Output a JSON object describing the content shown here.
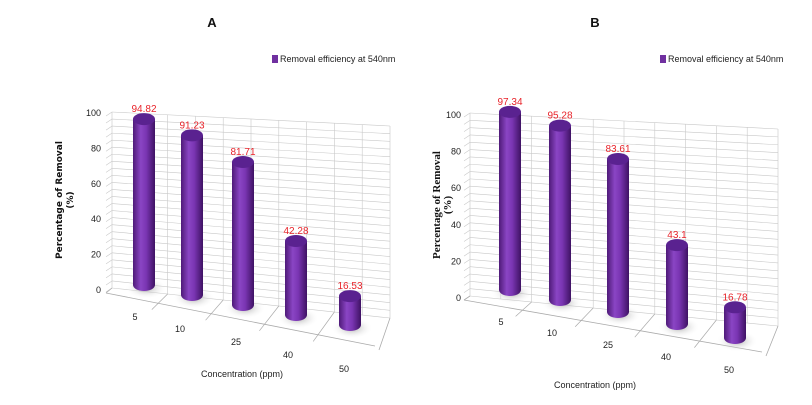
{
  "chart_data": [
    {
      "type": "bar",
      "title": "A",
      "categories": [
        "5",
        "10",
        "25",
        "40",
        "50"
      ],
      "series": [
        {
          "name": "Removal efficiency  at 540nm",
          "values": [
            94.82,
            91.23,
            81.71,
            42.28,
            16.53
          ]
        }
      ],
      "data_labels": [
        "94.82",
        "91.23",
        "81.71",
        "42.28",
        "16.53"
      ],
      "xlabel": "Concentration (ppm)",
      "ylabel": "Percentage of Removal (%)",
      "ylabel_lines": [
        "Percentage of Removal",
        "(%)"
      ],
      "ylim": [
        0,
        100
      ],
      "yticks": [
        "0",
        "20",
        "40",
        "60",
        "80",
        "100"
      ],
      "grid": true,
      "style": "3d-cylinder",
      "legend": "top-right"
    },
    {
      "type": "bar",
      "title": "B",
      "categories": [
        "5",
        "10",
        "25",
        "40",
        "50"
      ],
      "series": [
        {
          "name": "Removal efficiency  at 540nm",
          "values": [
            97.34,
            95.28,
            83.61,
            43.1,
            16.78
          ]
        }
      ],
      "data_labels": [
        "97.34",
        "95.28",
        "83.61",
        "43.1",
        "16.78"
      ],
      "xlabel": "Concentration (ppm)",
      "ylabel": "Percentage of Removal (%)",
      "ylabel_lines": [
        "Percentage of Removal",
        "(%)"
      ],
      "ylim": [
        0,
        100
      ],
      "yticks": [
        "0",
        "20",
        "40",
        "60",
        "80",
        "100"
      ],
      "grid": true,
      "style": "3d-cylinder",
      "legend": "top-right"
    }
  ],
  "colors": {
    "bar": "#7030a0",
    "data_label": "#e8232a",
    "grid": "#c8c8c8"
  }
}
